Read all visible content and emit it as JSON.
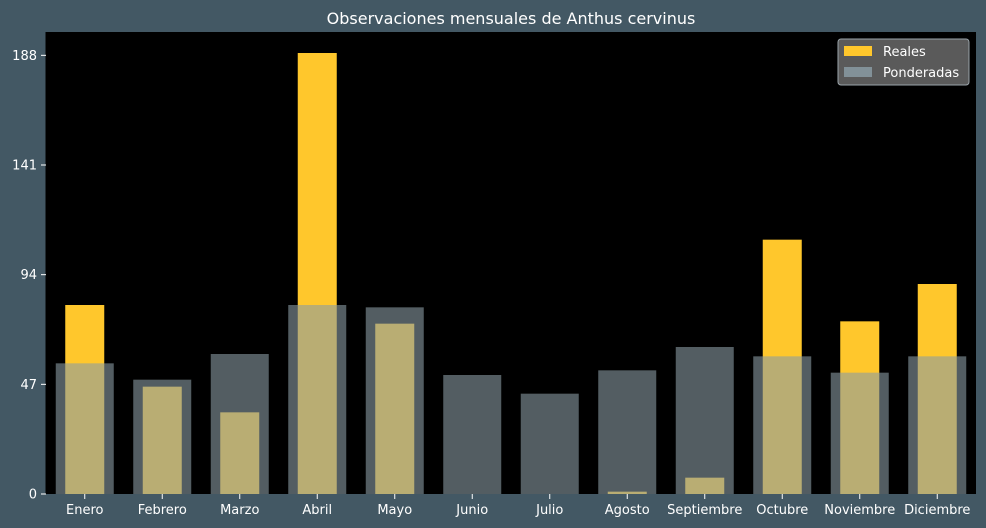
{
  "chart_data": {
    "type": "bar",
    "title": "Observaciones mensuales de Anthus cervinus",
    "xlabel": "",
    "ylabel": "",
    "categories": [
      "Enero",
      "Febrero",
      "Marzo",
      "Abril",
      "Mayo",
      "Junio",
      "Julio",
      "Agosto",
      "Septiembre",
      "Octubre",
      "Noviembre",
      "Diciembre"
    ],
    "yticks": [
      0,
      47,
      94,
      141,
      188
    ],
    "ylim": [
      0,
      198
    ],
    "series": [
      {
        "name": "Reales",
        "color": "#ffc72c",
        "values": [
          81,
          46,
          35,
          189,
          73,
          0,
          0,
          1,
          7,
          109,
          74,
          90
        ]
      },
      {
        "name": "Ponderadas",
        "color": "#8a9ba3",
        "values": [
          56,
          49,
          60,
          81,
          80,
          51,
          43,
          53,
          63,
          59,
          52,
          59
        ]
      }
    ],
    "legend": {
      "position": "top-right"
    },
    "grid": false,
    "colors": {
      "figure_background": "#435864",
      "plot_background": "#000000",
      "text": "#ffffff"
    }
  }
}
